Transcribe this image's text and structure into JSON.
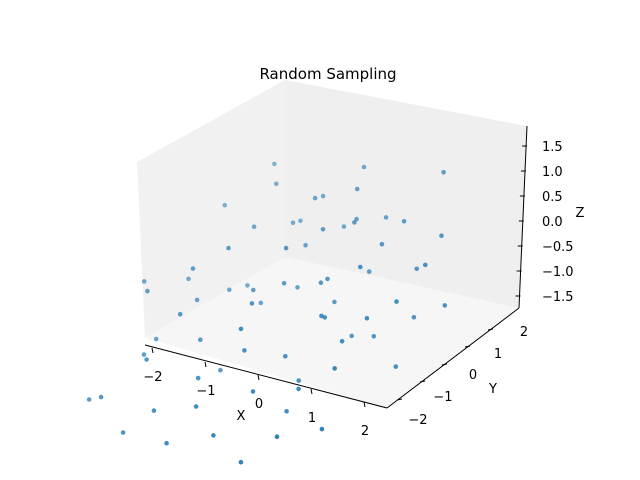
{
  "chart_data": {
    "type": "scatter",
    "title": "Random Sampling",
    "xlabel": "X",
    "ylabel": "Y",
    "zlabel": "Z",
    "xlim": [
      -2.4,
      2.4
    ],
    "ylim": [
      -2.4,
      2.4
    ],
    "zlim": [
      -1.8,
      1.8
    ],
    "x_ticks": [
      "−2",
      "−1",
      "0",
      "1",
      "2"
    ],
    "y_ticks": [
      "−2",
      "−1",
      "0",
      "1",
      "2"
    ],
    "z_ticks": [
      "−1.5",
      "−1.0",
      "−0.5",
      "0.0",
      "0.5",
      "1.0",
      "1.5"
    ],
    "grid": false,
    "colors": {
      "point": "#1f77b4",
      "pane_back": "#ededed",
      "pane_side": "#f3f3f3",
      "pane_floor": "#f5f5f5"
    },
    "points": [
      {
        "x": -1.9,
        "y": 1.2,
        "z": 0.4
      },
      {
        "x": -1.5,
        "y": 1.8,
        "z": 0.9
      },
      {
        "x": -1.2,
        "y": 1.5,
        "z": 0.8
      },
      {
        "x": -1.0,
        "y": 0.8,
        "z": 0.5
      },
      {
        "x": -1.7,
        "y": 0.2,
        "z": -0.3
      },
      {
        "x": -0.8,
        "y": 1.4,
        "z": 0.2
      },
      {
        "x": -0.5,
        "y": 1.7,
        "z": 0.6
      },
      {
        "x": -0.3,
        "y": 1.1,
        "z": 0.1
      },
      {
        "x": 0.0,
        "y": 2.0,
        "z": 1.1
      },
      {
        "x": 0.3,
        "y": 1.5,
        "z": 0.5
      },
      {
        "x": 0.5,
        "y": 1.9,
        "z": 0.3
      },
      {
        "x": 0.8,
        "y": 1.2,
        "z": -0.2
      },
      {
        "x": 1.1,
        "y": 1.6,
        "z": 0.6
      },
      {
        "x": 1.4,
        "y": 2.1,
        "z": 1.3
      },
      {
        "x": 1.6,
        "y": 1.3,
        "z": 0.0
      },
      {
        "x": 1.9,
        "y": 0.9,
        "z": -0.6
      },
      {
        "x": -1.6,
        "y": -0.6,
        "z": -0.9
      },
      {
        "x": -1.3,
        "y": -1.2,
        "z": -0.7
      },
      {
        "x": -1.1,
        "y": -0.3,
        "z": -0.2
      },
      {
        "x": -0.9,
        "y": -1.6,
        "z": -0.4
      },
      {
        "x": -0.6,
        "y": -0.8,
        "z": -0.5
      },
      {
        "x": -0.4,
        "y": 0.1,
        "z": -0.1
      },
      {
        "x": -0.2,
        "y": -1.3,
        "z": -0.8
      },
      {
        "x": 0.1,
        "y": -0.5,
        "z": 0.2
      },
      {
        "x": 0.2,
        "y": -1.8,
        "z": -0.9
      },
      {
        "x": 0.4,
        "y": -1.0,
        "z": -0.3
      },
      {
        "x": 0.6,
        "y": 0.4,
        "z": 0.1
      },
      {
        "x": 0.9,
        "y": -0.7,
        "z": -0.5
      },
      {
        "x": 1.0,
        "y": -1.5,
        "z": -0.6
      },
      {
        "x": 1.2,
        "y": -0.2,
        "z": 0.0
      },
      {
        "x": 1.5,
        "y": -1.1,
        "z": -0.7
      },
      {
        "x": 1.7,
        "y": -0.4,
        "z": -0.2
      },
      {
        "x": 2.0,
        "y": -0.9,
        "z": -0.3
      },
      {
        "x": 2.1,
        "y": 0.3,
        "z": 0.2
      },
      {
        "x": -1.8,
        "y": -1.8,
        "z": -1.3
      },
      {
        "x": -1.4,
        "y": -2.0,
        "z": -1.0
      },
      {
        "x": -0.9,
        "y": -2.1,
        "z": -1.5
      },
      {
        "x": -0.5,
        "y": -1.9,
        "z": -1.1
      },
      {
        "x": 0.0,
        "y": -2.2,
        "z": -1.4
      },
      {
        "x": 0.7,
        "y": -2.0,
        "z": -1.2
      },
      {
        "x": 1.3,
        "y": -2.1,
        "z": -1.5
      },
      {
        "x": 1.8,
        "y": -1.9,
        "z": -1.0
      },
      {
        "x": 2.2,
        "y": -1.4,
        "z": -1.1
      },
      {
        "x": -1.2,
        "y": 0.5,
        "z": -0.6
      },
      {
        "x": -0.7,
        "y": 0.6,
        "z": -0.8
      },
      {
        "x": -0.1,
        "y": 0.7,
        "z": -0.4
      },
      {
        "x": 0.5,
        "y": 0.8,
        "z": -0.6
      },
      {
        "x": 1.0,
        "y": 0.6,
        "z": -1.0
      },
      {
        "x": 1.5,
        "y": 0.5,
        "z": -0.8
      },
      {
        "x": 2.0,
        "y": 0.4,
        "z": -1.2
      },
      {
        "x": -0.3,
        "y": 1.3,
        "z": 0.9
      },
      {
        "x": 0.2,
        "y": 0.9,
        "z": 0.7
      },
      {
        "x": 0.7,
        "y": 1.0,
        "z": 0.9
      },
      {
        "x": 1.3,
        "y": 0.9,
        "z": 0.7
      },
      {
        "x": 1.8,
        "y": 1.6,
        "z": 0.5
      },
      {
        "x": -1.5,
        "y": -0.9,
        "z": 0.3
      },
      {
        "x": -1.0,
        "y": -0.5,
        "z": 0.6
      },
      {
        "x": -0.6,
        "y": -0.2,
        "z": 0.9
      },
      {
        "x": 0.3,
        "y": 0.0,
        "z": 1.0
      },
      {
        "x": 0.9,
        "y": 0.2,
        "z": 0.4
      },
      {
        "x": 1.4,
        "y": -0.5,
        "z": 0.3
      },
      {
        "x": 1.9,
        "y": -0.1,
        "z": 0.1
      },
      {
        "x": -1.3,
        "y": 1.0,
        "z": -0.9
      },
      {
        "x": -0.4,
        "y": -0.6,
        "z": -1.2
      },
      {
        "x": 0.8,
        "y": -0.3,
        "z": -1.3
      },
      {
        "x": 1.1,
        "y": -0.9,
        "z": -1.4
      },
      {
        "x": 0.0,
        "y": 0.3,
        "z": 0.0
      },
      {
        "x": 0.4,
        "y": 1.4,
        "z": 1.2
      },
      {
        "x": -0.2,
        "y": 1.8,
        "z": 0.0
      },
      {
        "x": 2.3,
        "y": 1.1,
        "z": -0.4
      },
      {
        "x": 2.2,
        "y": 0.8,
        "z": 0.6
      },
      {
        "x": -2.0,
        "y": -0.4,
        "z": 0.0
      },
      {
        "x": -1.1,
        "y": 1.9,
        "z": -0.2
      },
      {
        "x": 0.6,
        "y": -1.3,
        "z": 0.4
      },
      {
        "x": 1.6,
        "y": 0.1,
        "z": 0.9
      },
      {
        "x": -0.8,
        "y": -1.0,
        "z": 0.1
      }
    ]
  }
}
